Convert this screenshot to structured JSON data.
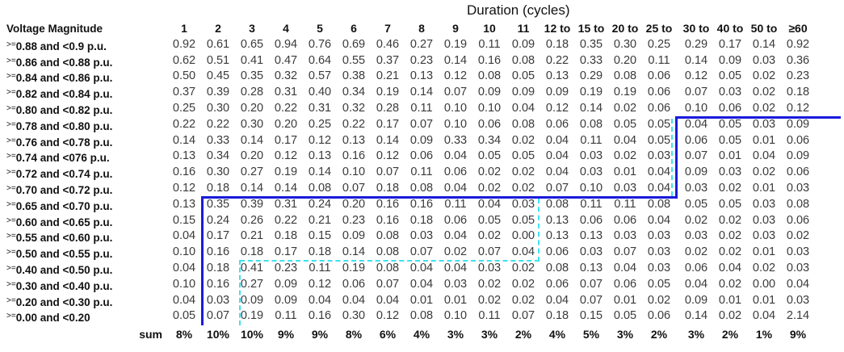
{
  "title": "Duration (cycles)",
  "header": {
    "row_label": "Voltage Magnitude",
    "columns": [
      "1",
      "2",
      "3",
      "4",
      "5",
      "6",
      "7",
      "8",
      "9",
      "10",
      "11",
      "12 to",
      "15 to",
      "20 to",
      "25 to",
      "30 to",
      "40 to",
      "50 to",
      "≥60"
    ]
  },
  "rows": [
    {
      "op": ">=",
      "range": "0.88 and <0.9 p.u.",
      "values": [
        "0.92",
        "0.61",
        "0.65",
        "0.94",
        "0.76",
        "0.69",
        "0.46",
        "0.27",
        "0.19",
        "0.11",
        "0.09",
        "0.18",
        "0.35",
        "0.30",
        "0.25",
        "0.29",
        "0.17",
        "0.14",
        "0.92"
      ]
    },
    {
      "op": ">=",
      "range": "0.86 and <0.88 p.u.",
      "values": [
        "0.62",
        "0.51",
        "0.41",
        "0.47",
        "0.64",
        "0.55",
        "0.37",
        "0.23",
        "0.14",
        "0.16",
        "0.08",
        "0.22",
        "0.33",
        "0.20",
        "0.11",
        "0.14",
        "0.09",
        "0.03",
        "0.36"
      ]
    },
    {
      "op": ">=",
      "range": "0.84 and <0.86 p.u.",
      "values": [
        "0.50",
        "0.45",
        "0.35",
        "0.32",
        "0.57",
        "0.38",
        "0.21",
        "0.13",
        "0.12",
        "0.08",
        "0.05",
        "0.13",
        "0.29",
        "0.08",
        "0.06",
        "0.12",
        "0.05",
        "0.02",
        "0.23"
      ]
    },
    {
      "op": ">=",
      "range": "0.82 and <0.84 p.u.",
      "values": [
        "0.37",
        "0.39",
        "0.28",
        "0.31",
        "0.40",
        "0.34",
        "0.19",
        "0.14",
        "0.07",
        "0.09",
        "0.09",
        "0.09",
        "0.19",
        "0.19",
        "0.06",
        "0.07",
        "0.03",
        "0.02",
        "0.18"
      ]
    },
    {
      "op": ">=",
      "range": "0.80 and <0.82 p.u.",
      "values": [
        "0.25",
        "0.30",
        "0.20",
        "0.22",
        "0.31",
        "0.32",
        "0.28",
        "0.11",
        "0.10",
        "0.10",
        "0.04",
        "0.12",
        "0.14",
        "0.02",
        "0.06",
        "0.10",
        "0.06",
        "0.02",
        "0.12"
      ]
    },
    {
      "op": ">=",
      "range": "0.78 and <0.80 p.u.",
      "values": [
        "0.22",
        "0.22",
        "0.30",
        "0.20",
        "0.25",
        "0.22",
        "0.17",
        "0.07",
        "0.10",
        "0.06",
        "0.08",
        "0.06",
        "0.08",
        "0.05",
        "0.05",
        "0.04",
        "0.05",
        "0.03",
        "0.09"
      ]
    },
    {
      "op": ">=",
      "range": "0.76 and <0.78 p.u.",
      "values": [
        "0.14",
        "0.33",
        "0.14",
        "0.17",
        "0.12",
        "0.13",
        "0.14",
        "0.09",
        "0.33",
        "0.34",
        "0.02",
        "0.04",
        "0.11",
        "0.04",
        "0.05",
        "0.06",
        "0.05",
        "0.01",
        "0.06"
      ]
    },
    {
      "op": ">=",
      "range": "0.74 and <076 p.u.",
      "values": [
        "0.13",
        "0.34",
        "0.20",
        "0.12",
        "0.13",
        "0.16",
        "0.12",
        "0.06",
        "0.04",
        "0.05",
        "0.05",
        "0.04",
        "0.03",
        "0.02",
        "0.03",
        "0.07",
        "0.01",
        "0.04",
        "0.09"
      ]
    },
    {
      "op": ">=",
      "range": "0.72 and <0.74 p.u.",
      "values": [
        "0.16",
        "0.30",
        "0.27",
        "0.19",
        "0.14",
        "0.10",
        "0.07",
        "0.11",
        "0.06",
        "0.02",
        "0.02",
        "0.04",
        "0.03",
        "0.01",
        "0.04",
        "0.09",
        "0.03",
        "0.02",
        "0.06"
      ]
    },
    {
      "op": ">=",
      "range": "0.70 and <0.72 p.u.",
      "values": [
        "0.12",
        "0.18",
        "0.14",
        "0.14",
        "0.08",
        "0.07",
        "0.18",
        "0.08",
        "0.04",
        "0.02",
        "0.02",
        "0.07",
        "0.10",
        "0.03",
        "0.04",
        "0.03",
        "0.02",
        "0.01",
        "0.03"
      ]
    },
    {
      "op": ">=",
      "range": "0.65 and <0.70 p.u.",
      "values": [
        "0.13",
        "0.35",
        "0.39",
        "0.31",
        "0.24",
        "0.20",
        "0.16",
        "0.16",
        "0.11",
        "0.04",
        "0.03",
        "0.08",
        "0.11",
        "0.11",
        "0.08",
        "0.05",
        "0.05",
        "0.03",
        "0.08"
      ]
    },
    {
      "op": ">=",
      "range": "0.60 and <0.65 p.u.",
      "values": [
        "0.15",
        "0.24",
        "0.26",
        "0.22",
        "0.21",
        "0.23",
        "0.16",
        "0.18",
        "0.06",
        "0.05",
        "0.05",
        "0.13",
        "0.06",
        "0.06",
        "0.04",
        "0.02",
        "0.02",
        "0.03",
        "0.06"
      ]
    },
    {
      "op": ">=",
      "range": "0.55 and <0.60 p.u.",
      "values": [
        "0.04",
        "0.17",
        "0.21",
        "0.18",
        "0.15",
        "0.09",
        "0.08",
        "0.03",
        "0.04",
        "0.02",
        "0.00",
        "0.13",
        "0.13",
        "0.03",
        "0.03",
        "0.03",
        "0.02",
        "0.03",
        "0.02"
      ]
    },
    {
      "op": ">=",
      "range": "0.50 and <0.55 p.u.",
      "values": [
        "0.10",
        "0.16",
        "0.18",
        "0.17",
        "0.18",
        "0.14",
        "0.08",
        "0.07",
        "0.02",
        "0.07",
        "0.04",
        "0.06",
        "0.03",
        "0.07",
        "0.03",
        "0.02",
        "0.02",
        "0.01",
        "0.03"
      ]
    },
    {
      "op": ">=",
      "range": "0.40 and <0.50 p.u.",
      "values": [
        "0.04",
        "0.18",
        "0.41",
        "0.23",
        "0.11",
        "0.19",
        "0.08",
        "0.04",
        "0.04",
        "0.03",
        "0.02",
        "0.08",
        "0.13",
        "0.04",
        "0.03",
        "0.06",
        "0.04",
        "0.02",
        "0.03"
      ]
    },
    {
      "op": ">=",
      "range": "0.30 and <0.40 p.u.",
      "values": [
        "0.10",
        "0.16",
        "0.27",
        "0.09",
        "0.12",
        "0.06",
        "0.07",
        "0.04",
        "0.03",
        "0.02",
        "0.02",
        "0.06",
        "0.07",
        "0.06",
        "0.05",
        "0.04",
        "0.02",
        "0.00",
        "0.04"
      ]
    },
    {
      "op": ">=",
      "range": "0.20 and <0.30 p.u.",
      "values": [
        "0.04",
        "0.03",
        "0.09",
        "0.09",
        "0.04",
        "0.04",
        "0.04",
        "0.01",
        "0.01",
        "0.02",
        "0.02",
        "0.04",
        "0.07",
        "0.01",
        "0.02",
        "0.09",
        "0.01",
        "0.01",
        "0.03"
      ]
    },
    {
      "op": ">=",
      "range": "0.00 and <0.20",
      "values": [
        "0.05",
        "0.07",
        "0.19",
        "0.11",
        "0.16",
        "0.30",
        "0.12",
        "0.08",
        "0.10",
        "0.11",
        "0.07",
        "0.18",
        "0.15",
        "0.05",
        "0.06",
        "0.14",
        "0.02",
        "0.04",
        "2.14"
      ]
    }
  ],
  "sum": {
    "label": "sum",
    "values": [
      "8%",
      "10%",
      "10%",
      "9%",
      "9%",
      "8%",
      "6%",
      "4%",
      "3%",
      "3%",
      "2%",
      "4%",
      "5%",
      "3%",
      "2%",
      "3%",
      "2%",
      "1%",
      "9%"
    ]
  },
  "colors": {
    "region_border": "#1a1adc",
    "region_dashed": "#3ee0f0"
  }
}
